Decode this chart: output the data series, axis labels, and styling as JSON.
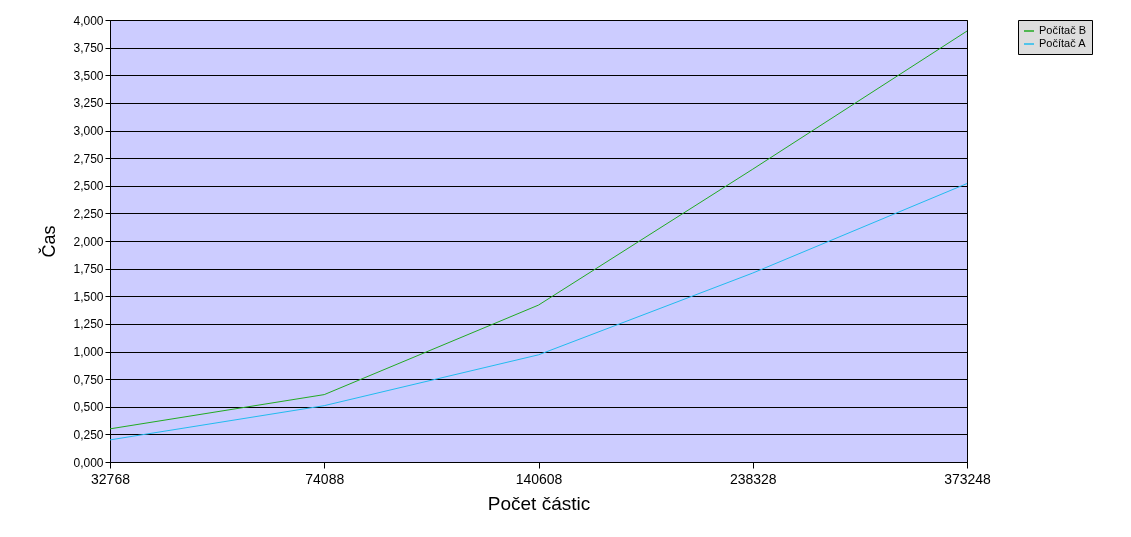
{
  "chart_data": {
    "type": "line",
    "xlabel": "Počet částic",
    "ylabel": "Čas",
    "categories": [
      "32768",
      "74088",
      "140608",
      "238328",
      "373248"
    ],
    "series": [
      {
        "name": "Počítač B",
        "color": "#22aa22",
        "values": [
          0.3,
          0.61,
          1.42,
          2.65,
          3.9
        ]
      },
      {
        "name": "Počítač A",
        "color": "#22bbee",
        "values": [
          0.2,
          0.51,
          0.97,
          1.71,
          2.52
        ]
      }
    ],
    "ylim": [
      0,
      4
    ],
    "yticks": [
      {
        "value": 0,
        "label": "0,000"
      },
      {
        "value": 0.25,
        "label": "0,250"
      },
      {
        "value": 0.5,
        "label": "0,500"
      },
      {
        "value": 0.75,
        "label": "0,750"
      },
      {
        "value": 1,
        "label": "1,000"
      },
      {
        "value": 1.25,
        "label": "1,250"
      },
      {
        "value": 1.5,
        "label": "1,500"
      },
      {
        "value": 1.75,
        "label": "1,750"
      },
      {
        "value": 2,
        "label": "2,000"
      },
      {
        "value": 2.25,
        "label": "2,250"
      },
      {
        "value": 2.5,
        "label": "2,500"
      },
      {
        "value": 2.75,
        "label": "2,750"
      },
      {
        "value": 3,
        "label": "3,000"
      },
      {
        "value": 3.25,
        "label": "3,250"
      },
      {
        "value": 3.5,
        "label": "3,500"
      },
      {
        "value": 3.75,
        "label": "3,750"
      },
      {
        "value": 4,
        "label": "4,000"
      }
    ],
    "grid": "y",
    "legend": "right",
    "marker": "none",
    "line_style": "solid"
  }
}
